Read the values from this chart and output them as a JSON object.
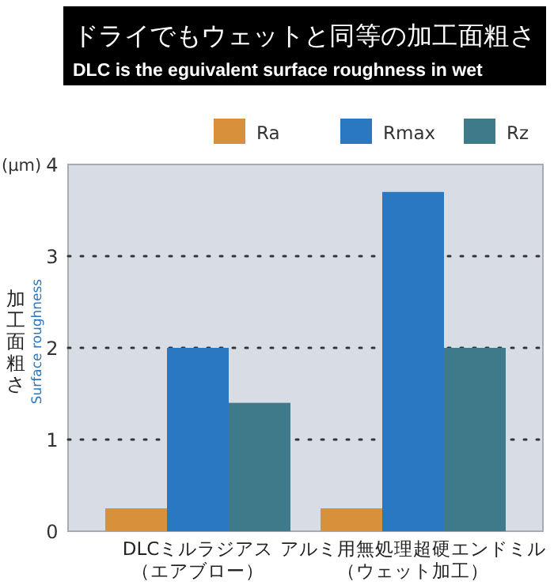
{
  "chart_data": {
    "type": "bar",
    "title": "ドライでもウェットと同等の加工面粗さ",
    "subtitle": "DLC is the eguivalent surface roughness in wet",
    "ylabel": "加工面粗さ",
    "annotations": [
      "(μm)",
      "Surface roughness"
    ],
    "categories": [
      "DLCミルラジアス（エアブロー）",
      "アルミ用無処理超硬エンドミル（ウェット加工）"
    ],
    "series": [
      {
        "name": "Ra",
        "color": "#d9903a",
        "values": [
          0.25,
          0.25
        ]
      },
      {
        "name": "Rmax",
        "color": "#2a78c2",
        "values": [
          2.0,
          3.7
        ]
      },
      {
        "name": "Rz",
        "color": "#3f7a8a",
        "values": [
          1.4,
          2.0
        ]
      }
    ],
    "ylim": [
      0,
      4
    ],
    "yticks": [
      0,
      1,
      2,
      3,
      4
    ],
    "grid": "y",
    "legend": "top"
  }
}
